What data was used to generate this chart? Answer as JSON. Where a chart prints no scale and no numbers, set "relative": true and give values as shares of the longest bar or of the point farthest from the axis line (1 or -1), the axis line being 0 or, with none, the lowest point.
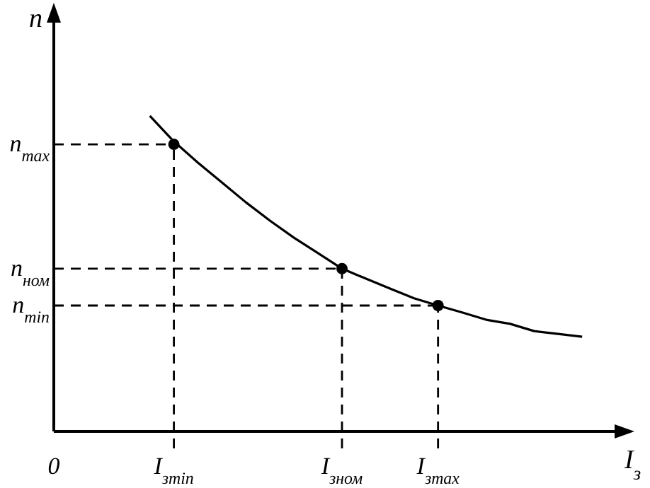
{
  "chart_data": {
    "type": "line",
    "relative": true,
    "xlabel": "I$_{з}$",
    "ylabel": "n",
    "categories": [
      "0",
      null,
      null,
      null,
      null,
      "I$_{зmin}$",
      null,
      null,
      null,
      null,
      null,
      null,
      "I$_{зном}$",
      null,
      null,
      null,
      "I$_{зmax}$",
      null,
      null,
      null,
      null,
      null,
      null,
      null
    ],
    "ref_lines": [
      {
        "axis": "y",
        "value": 0.91,
        "label": "n$_{max}$",
        "line_style": "dashed",
        "color": "#000000"
      },
      {
        "axis": "y",
        "value": 0.516,
        "label": "n$_{ном}$",
        "line_style": "dashed",
        "color": "#000000"
      },
      {
        "axis": "y",
        "value": 0.399,
        "label": "n$_{min}$",
        "line_style": "dashed",
        "color": "#000000"
      },
      {
        "axis": "x",
        "value": "I$_{зmin}$",
        "line_style": "dashed",
        "color": "#000000"
      },
      {
        "axis": "x",
        "value": "I$_{зном}$",
        "line_style": "dashed",
        "color": "#000000"
      },
      {
        "axis": "x",
        "value": "I$_{зmax}$",
        "line_style": "dashed",
        "color": "#000000"
      }
    ],
    "series": [
      {
        "color": "#000000",
        "marker": "none",
        "line_style": "solid",
        "values": [
          null,
          null,
          null,
          null,
          1,
          0.919,
          0.852,
          0.789,
          0.726,
          0.668,
          0.614,
          0.565,
          0.516,
          0.484,
          0.453,
          0.422,
          0.399,
          0.377,
          0.354,
          0.341,
          0.318,
          0.309,
          0.3,
          null
        ]
      },
      {
        "type": "scatter",
        "color": "#000000",
        "marker": "circle",
        "values": [
          null,
          null,
          null,
          null,
          null,
          0.91,
          null,
          null,
          null,
          null,
          null,
          null,
          0.516,
          null,
          null,
          null,
          0.399,
          null,
          null,
          null,
          null,
          null,
          null,
          null
        ]
      }
    ]
  }
}
